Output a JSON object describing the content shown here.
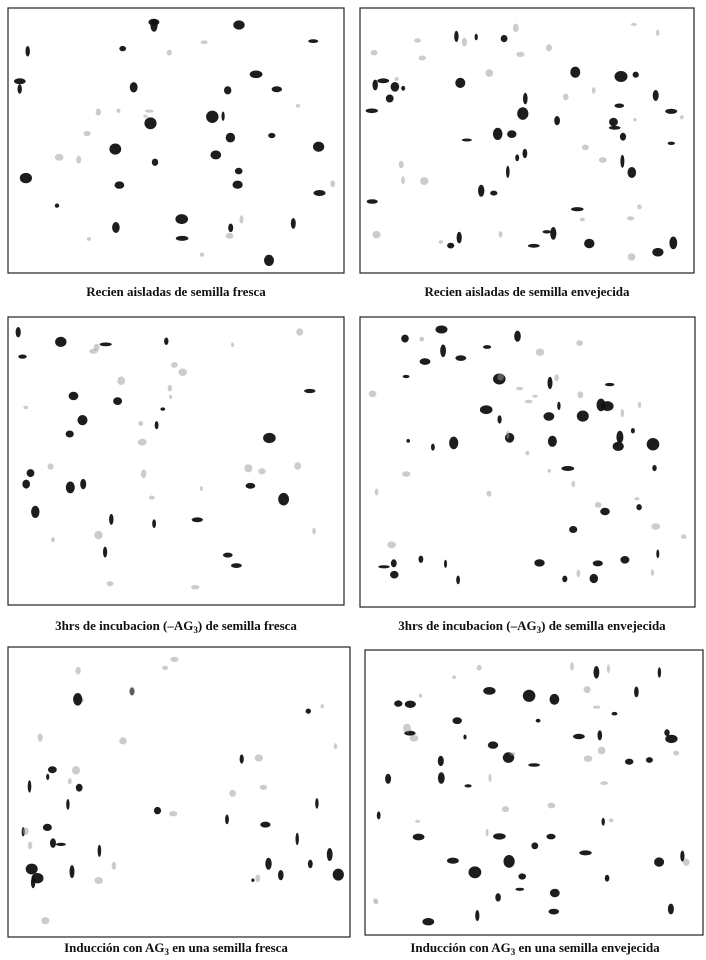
{
  "panels": [
    {
      "caption": {
        "text": "Recien aisladas de semilla fresca"
      }
    },
    {
      "caption": {
        "text": "Recien aisladas de semilla envejecida"
      }
    },
    {
      "caption": {
        "before": "3hrs de incubacion (–AG",
        "sub": "3",
        "after": ") de semilla fresca"
      }
    },
    {
      "caption": {
        "before": "3hrs de incubacion (–AG",
        "sub": "3",
        "after": ") de semilla envejecida"
      }
    },
    {
      "caption": {
        "before": "Inducción con AG",
        "sub": "3",
        "after": " en una semilla fresca"
      }
    },
    {
      "caption": {
        "before": "Inducción con AG",
        "sub": "3",
        "after": " en una semilla  envejecida"
      }
    }
  ]
}
